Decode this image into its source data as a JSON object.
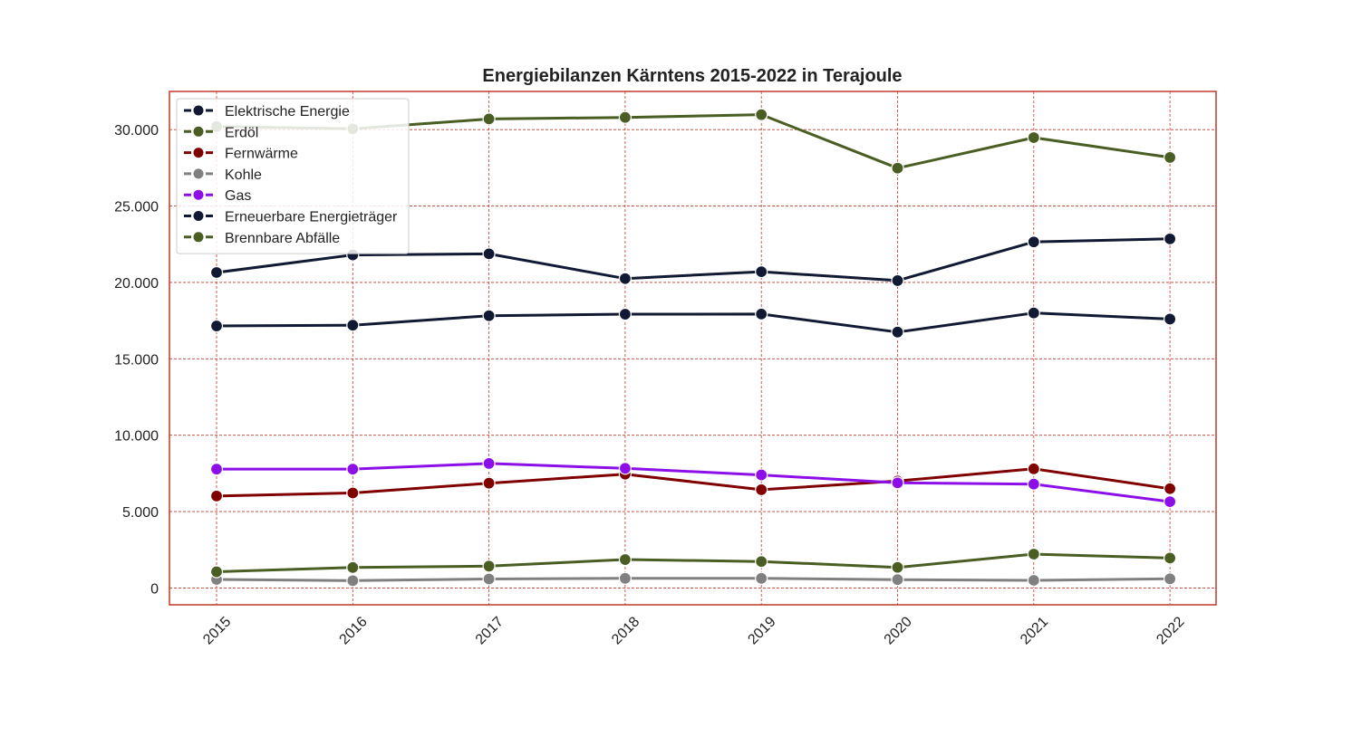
{
  "colors": {
    "frame": "#c0392b",
    "grid": "#c0392b",
    "legend_border": "#cccccc",
    "legend_bg": "#ffffff"
  },
  "chart_data": {
    "type": "line",
    "title": "Energiebilanzen Kärntens 2015-2022 in Terajoule",
    "xlabel": "",
    "ylabel": "",
    "x": [
      "2015",
      "2016",
      "2017",
      "2018",
      "2019",
      "2020",
      "2021",
      "2022"
    ],
    "ylim": [
      -1100,
      32500
    ],
    "yticks": [
      0,
      5000,
      10000,
      15000,
      20000,
      25000,
      30000
    ],
    "ytick_labels": [
      "0",
      "5.000",
      "10.000",
      "15.000",
      "20.000",
      "25.000",
      "30.000"
    ],
    "grid": true,
    "legend_position": "top-left",
    "series": [
      {
        "name": "Elektrische Energie",
        "color": "#121a33",
        "values": [
          17150,
          17200,
          17820,
          17920,
          17930,
          16750,
          18000,
          17600
        ]
      },
      {
        "name": "Erdöl",
        "color": "#4a5e23",
        "values": [
          30200,
          30050,
          30700,
          30800,
          30980,
          27480,
          29480,
          28180
        ]
      },
      {
        "name": "Fernwärme",
        "color": "#800000",
        "values": [
          6020,
          6220,
          6860,
          7450,
          6430,
          7000,
          7800,
          6500
        ]
      },
      {
        "name": "Kohle",
        "color": "#808080",
        "values": [
          560,
          480,
          590,
          630,
          630,
          550,
          500,
          600
        ]
      },
      {
        "name": "Gas",
        "color": "#8c0fe8",
        "values": [
          7780,
          7780,
          8150,
          7830,
          7400,
          6880,
          6800,
          5650
        ]
      },
      {
        "name": "Erneuerbare Energieträger",
        "color": "#121a33",
        "values": [
          20650,
          21800,
          21870,
          20250,
          20700,
          20120,
          22650,
          22850
        ]
      },
      {
        "name": "Brennbare Abfälle",
        "color": "#4a5e23",
        "values": [
          1060,
          1340,
          1430,
          1860,
          1730,
          1350,
          2220,
          1960
        ]
      }
    ]
  }
}
